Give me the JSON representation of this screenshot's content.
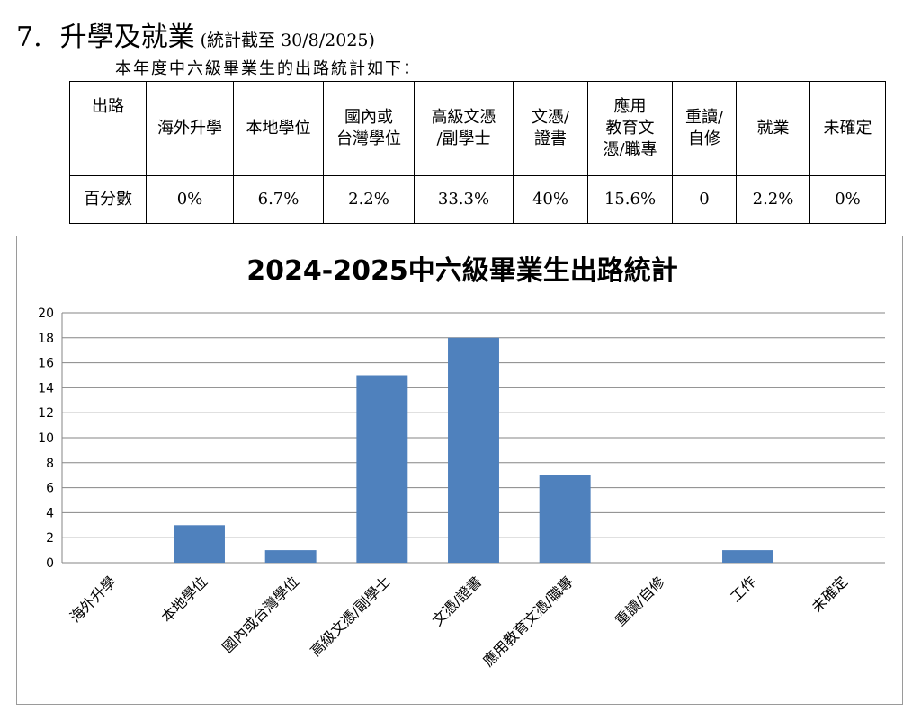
{
  "heading": {
    "number": "7.",
    "title": "升學及就業",
    "note": "(統計截至 30/8/2025)"
  },
  "intro": "本年度中六級畢業生的出路統計如下：",
  "table": {
    "header_label": "出路",
    "row_label": "百分數",
    "columns": [
      {
        "label": [
          "海外升學"
        ],
        "value": "0%"
      },
      {
        "label": [
          "本地學位"
        ],
        "value": "6.7%"
      },
      {
        "label": [
          "國內或",
          "台灣學位"
        ],
        "value": "2.2%"
      },
      {
        "label": [
          "高級文憑",
          "/副學士"
        ],
        "value": "33.3%"
      },
      {
        "label": [
          "文憑/",
          "證書"
        ],
        "value": "40%"
      },
      {
        "label": [
          "應用",
          "教育文",
          "憑/職專"
        ],
        "value": "15.6%"
      },
      {
        "label": [
          "重讀/",
          "自修"
        ],
        "value": "0"
      },
      {
        "label": [
          "就業"
        ],
        "value": "2.2%"
      },
      {
        "label": [
          "未確定"
        ],
        "value": "0%"
      }
    ]
  },
  "chart_data": {
    "type": "bar",
    "title": "2024-2025中六級畢業生出路統計",
    "categories": [
      "海外升學",
      "本地學位",
      "國內或台灣學位",
      "高級文憑/副學士",
      "文憑/證書",
      "應用教育文憑/職專",
      "重讀/自修",
      "工作",
      "未確定"
    ],
    "values": [
      0,
      3,
      1,
      15,
      18,
      7,
      0,
      1,
      0
    ],
    "ylim": [
      0,
      20
    ],
    "yticks": [
      0,
      2,
      4,
      6,
      8,
      10,
      12,
      14,
      16,
      18,
      20
    ],
    "grid": true,
    "legend": "none",
    "bar_color": "#4f81bd"
  }
}
